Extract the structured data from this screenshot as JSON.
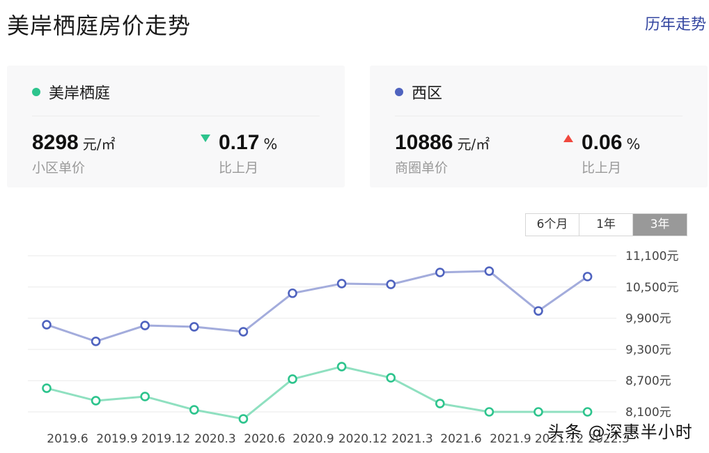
{
  "header": {
    "title": "美岸栖庭房价走势",
    "history_link": "历年走势"
  },
  "cards": [
    {
      "name": "美岸栖庭",
      "dot_color": "#2dc48d",
      "price": "8298",
      "unit": "元/㎡",
      "price_label": "小区单价",
      "direction": "down",
      "change": "0.17",
      "change_unit": "%",
      "change_label": "比上月"
    },
    {
      "name": "西区",
      "dot_color": "#4f63bf",
      "price": "10886",
      "unit": "元/㎡",
      "price_label": "商圈单价",
      "direction": "up",
      "change": "0.06",
      "change_unit": "%",
      "change_label": "比上月"
    }
  ],
  "range_tabs": [
    {
      "label": "6个月",
      "active": false
    },
    {
      "label": "1年",
      "active": false
    },
    {
      "label": "3年",
      "active": true
    }
  ],
  "watermark": "头条 @深惠半小时",
  "chart_data": {
    "type": "line",
    "title": "",
    "xlabel": "",
    "ylabel": "",
    "x": [
      "2019.6",
      "2019.9",
      "2019.12",
      "2020.3",
      "2020.6",
      "2020.9",
      "2020.12",
      "2021.3",
      "2021.6",
      "2021.9",
      "2021.12",
      "2022.3"
    ],
    "y_ticks": [
      "11,100元",
      "10,500元",
      "9,900元",
      "9,300元",
      "8,700元",
      "8,100元"
    ],
    "y_tick_values": [
      11100,
      10500,
      9900,
      9300,
      8700,
      8100
    ],
    "ylim": [
      8100,
      11100
    ],
    "grid": true,
    "legend_position": "top (cards)",
    "series": [
      {
        "name": "西区",
        "color": "#4f63bf",
        "line_color": "#a3acdc",
        "values": [
          9775,
          9455,
          9760,
          9735,
          9640,
          10380,
          10565,
          10550,
          10780,
          10805,
          10040,
          10700
        ]
      },
      {
        "name": "美岸栖庭",
        "color": "#2dc48d",
        "line_color": "#8fe0c0",
        "values": [
          8555,
          8315,
          8395,
          8140,
          7965,
          8730,
          8970,
          8755,
          8260,
          8100,
          8100,
          8100
        ]
      }
    ]
  }
}
